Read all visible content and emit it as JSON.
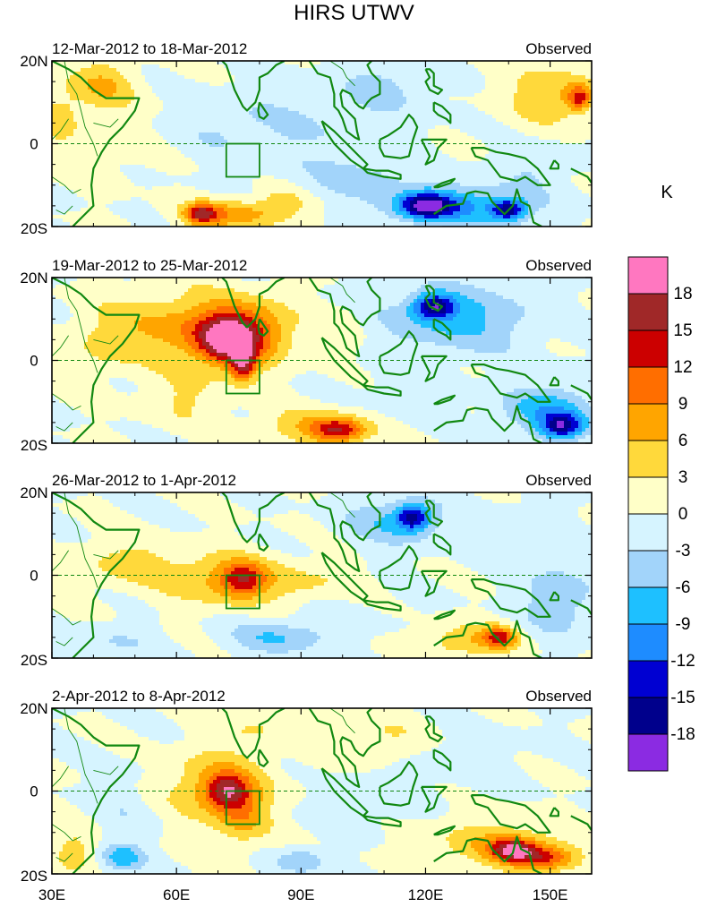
{
  "title": "HIRS UTWV",
  "panels": [
    {
      "date_range": "12-Mar-2012 to 18-Mar-2012",
      "label": "Observed"
    },
    {
      "date_range": "19-Mar-2012 to 25-Mar-2012",
      "label": "Observed"
    },
    {
      "date_range": "26-Mar-2012 to 1-Apr-2012",
      "label": "Observed"
    },
    {
      "date_range": "2-Apr-2012 to 8-Apr-2012",
      "label": "Observed"
    }
  ],
  "lat_labels": [
    "20N",
    "0",
    "20S"
  ],
  "lon_labels": [
    "30E",
    "60E",
    "90E",
    "120E",
    "150E"
  ],
  "colorbar": {
    "unit": "K",
    "levels": [
      "18",
      "15",
      "12",
      "9",
      "6",
      "3",
      "0",
      "-3",
      "-6",
      "-9",
      "-12",
      "-15",
      "-18"
    ],
    "colors": [
      "#ff77c0",
      "#a02828",
      "#cc0000",
      "#ff6e00",
      "#ffa500",
      "#ffd93b",
      "#ffffc8",
      "#d6f4ff",
      "#a2d4fa",
      "#1ec0ff",
      "#1e8cff",
      "#0000d2",
      "#00008c",
      "#8b2be2"
    ]
  },
  "box_region": {
    "lon_range": [
      72,
      80
    ],
    "lat_range": [
      -8,
      0
    ]
  }
}
